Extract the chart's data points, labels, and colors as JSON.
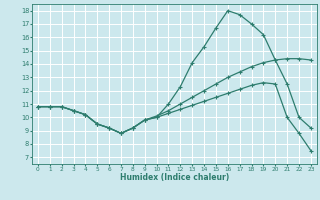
{
  "xlabel": "Humidex (Indice chaleur)",
  "bg_color": "#cce8ed",
  "grid_color": "#ffffff",
  "line_color": "#2e7d6e",
  "xlim": [
    -0.5,
    23.5
  ],
  "ylim": [
    6.5,
    18.5
  ],
  "xticks": [
    0,
    1,
    2,
    3,
    4,
    5,
    6,
    7,
    8,
    9,
    10,
    11,
    12,
    13,
    14,
    15,
    16,
    17,
    18,
    19,
    20,
    21,
    22,
    23
  ],
  "yticks": [
    7,
    8,
    9,
    10,
    11,
    12,
    13,
    14,
    15,
    16,
    17,
    18
  ],
  "line1_x": [
    0,
    1,
    2,
    3,
    4,
    5,
    6,
    7,
    8,
    9,
    10,
    11,
    12,
    13,
    14,
    15,
    16,
    17,
    18,
    19,
    20,
    21,
    22,
    23
  ],
  "line1_y": [
    10.8,
    10.8,
    10.8,
    10.5,
    10.2,
    9.5,
    9.2,
    8.8,
    9.2,
    9.8,
    10.0,
    11.0,
    12.3,
    14.1,
    15.3,
    16.7,
    18.0,
    17.7,
    17.0,
    16.2,
    14.3,
    12.5,
    10.0,
    9.2
  ],
  "line2_x": [
    0,
    1,
    2,
    3,
    4,
    5,
    6,
    7,
    8,
    9,
    10,
    11,
    12,
    13,
    14,
    15,
    16,
    17,
    18,
    19,
    20,
    21,
    22,
    23
  ],
  "line2_y": [
    10.8,
    10.8,
    10.8,
    10.5,
    10.2,
    9.5,
    9.2,
    8.8,
    9.2,
    9.8,
    10.0,
    10.3,
    10.6,
    10.9,
    11.2,
    11.5,
    11.8,
    12.1,
    12.4,
    12.6,
    12.5,
    10.0,
    8.8,
    7.5
  ],
  "line3_x": [
    0,
    1,
    2,
    3,
    4,
    5,
    6,
    7,
    8,
    9,
    10,
    11,
    12,
    13,
    14,
    15,
    16,
    17,
    18,
    19,
    20,
    21,
    22,
    23
  ],
  "line3_y": [
    10.8,
    10.8,
    10.8,
    10.5,
    10.2,
    9.5,
    9.2,
    8.8,
    9.2,
    9.8,
    10.1,
    10.5,
    11.0,
    11.5,
    12.0,
    12.5,
    13.0,
    13.4,
    13.8,
    14.1,
    14.3,
    14.4,
    14.4,
    14.3
  ]
}
